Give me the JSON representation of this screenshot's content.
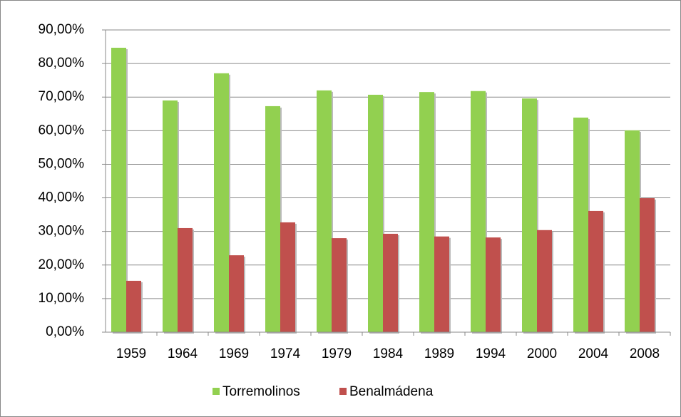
{
  "chart_data": {
    "type": "bar",
    "categories": [
      "1959",
      "1964",
      "1969",
      "1974",
      "1979",
      "1984",
      "1989",
      "1994",
      "2000",
      "2004",
      "2008"
    ],
    "series": [
      {
        "name": "Torremolinos",
        "color": "#92d050",
        "values": [
          84.7,
          69.0,
          77.1,
          67.3,
          72.0,
          70.7,
          71.5,
          71.8,
          69.6,
          63.9,
          60.1
        ]
      },
      {
        "name": "Benalmádena",
        "color": "#c0504d",
        "values": [
          15.3,
          31.0,
          22.9,
          32.7,
          28.0,
          29.3,
          28.5,
          28.2,
          30.4,
          36.1,
          39.9
        ]
      }
    ],
    "ylim": [
      0,
      90
    ],
    "yticks": [
      {
        "value": 0,
        "label": "0,00%"
      },
      {
        "value": 10,
        "label": "10,00%"
      },
      {
        "value": 20,
        "label": "20,00%"
      },
      {
        "value": 30,
        "label": "30,00%"
      },
      {
        "value": 40,
        "label": "40,00%"
      },
      {
        "value": 50,
        "label": "50,00%"
      },
      {
        "value": 60,
        "label": "60,00%"
      },
      {
        "value": 70,
        "label": "70,00%"
      },
      {
        "value": 80,
        "label": "80,00%"
      },
      {
        "value": 90,
        "label": "90,00%"
      }
    ],
    "grid": true,
    "legend": "bottom"
  }
}
